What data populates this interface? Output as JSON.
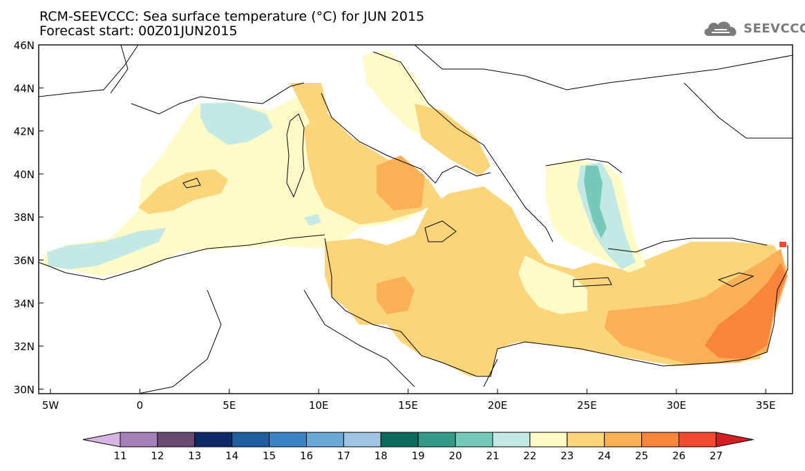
{
  "header": {
    "title": "RCM-SEEVCCC: Sea surface temperature (°C) for JUN 2015",
    "subtitle": "Forecast start: 00Z01JUN2015"
  },
  "logo": {
    "text": "SEEVCCC",
    "icon": "cloud-icon"
  },
  "map": {
    "lat_labels": [
      "46N",
      "44N",
      "42N",
      "40N",
      "38N",
      "36N",
      "34N",
      "32N",
      "30N"
    ],
    "lon_labels": [
      "5W",
      "0",
      "5E",
      "10E",
      "15E",
      "20E",
      "25E",
      "30E",
      "35E"
    ]
  },
  "colorbar": {
    "labels": [
      "11",
      "12",
      "13",
      "14",
      "15",
      "16",
      "17",
      "18",
      "19",
      "20",
      "21",
      "22",
      "23",
      "24",
      "25",
      "26",
      "27"
    ],
    "colors": [
      "#d8b4e0",
      "#a680b8",
      "#684a72",
      "#0e2a66",
      "#1f5fa0",
      "#3b84c4",
      "#6aa8d8",
      "#9ec6e2",
      "#0d6b5e",
      "#359a8c",
      "#74c9b9",
      "#c4e9e4",
      "#fefbc8",
      "#fcd57a",
      "#f9b056",
      "#f7853c",
      "#f04a30",
      "#d41e24"
    ]
  },
  "colors": {
    "sst_22": "#c4e9e4",
    "sst_23": "#fefbc8",
    "sst_24": "#fcd57a",
    "sst_25": "#f9b056",
    "sst_26": "#f7853c",
    "sst_27": "#f04a30",
    "sst_21": "#74c9b9"
  }
}
